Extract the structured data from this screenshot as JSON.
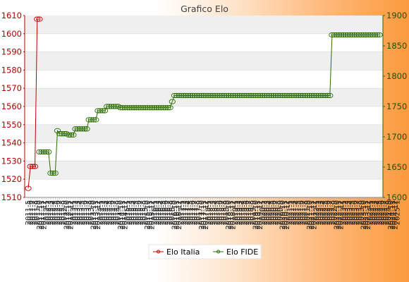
{
  "chart_data": {
    "type": "line",
    "title": "Grafico Elo",
    "left_axis": {
      "ylim": [
        1510,
        1610
      ],
      "ticks": [
        1510,
        1520,
        1530,
        1540,
        1550,
        1560,
        1570,
        1580,
        1590,
        1600,
        1610
      ],
      "color": "#c00000"
    },
    "right_axis": {
      "ylim": [
        1600,
        1900
      ],
      "ticks": [
        1600,
        1650,
        1700,
        1750,
        1800,
        1850,
        1900
      ],
      "color": "#2a6e00"
    },
    "grid": "horizontal bands",
    "legend_position": "bottom-center",
    "x_count": 157,
    "x_tick_labels": [
      "2011-5",
      "2011-6",
      "2011-7",
      "2011-8",
      "2011-9",
      "2011-10",
      "2011-11",
      "2011-12",
      "2012-1",
      "2012-2",
      "2012-3",
      "2012-4",
      "2012-5",
      "2012-6",
      "2012-7",
      "2012-8",
      "2012-9",
      "2012-10",
      "2012-11",
      "2012-12",
      "2013-1",
      "2013-2",
      "2013-3",
      "2013-4",
      "2013-5",
      "2013-6",
      "2013-7",
      "2013-8",
      "2013-9",
      "2013-10",
      "2013-11",
      "2013-12",
      "2014-1",
      "2014-2",
      "2014-3",
      "2014-4",
      "2014-5",
      "2014-6",
      "2014-7",
      "2014-8",
      "2014-9",
      "2014-10",
      "2014-11",
      "2014-12",
      "2015-1",
      "2015-2",
      "2015-3",
      "2015-4",
      "2015-5",
      "2015-6",
      "2015-7",
      "2015-8",
      "2015-9",
      "2015-10",
      "2015-11",
      "2015-12",
      "2016-1",
      "2016-2",
      "2016-3",
      "2016-4",
      "2016-5",
      "2016-6",
      "2016-7",
      "2016-8",
      "2016-9",
      "2016-10",
      "2016-11",
      "2016-12",
      "2017-1",
      "2017-2",
      "2017-3",
      "2017-4",
      "2017-5",
      "2017-6",
      "2017-7",
      "2017-8",
      "2017-9",
      "2017-10",
      "2017-11",
      "2017-12",
      "2018-1",
      "2018-2",
      "2018-3",
      "2018-4",
      "2018-5",
      "2018-6",
      "2018-7",
      "2018-8",
      "2018-9",
      "2018-10",
      "2018-11",
      "2018-12",
      "2019-1",
      "2019-2",
      "2019-3",
      "2019-4",
      "2019-5",
      "2019-6",
      "2019-7",
      "2019-8",
      "2019-9",
      "2019-10",
      "2019-11",
      "2019-12",
      "2020-1",
      "2020-2",
      "2020-3",
      "2020-4",
      "2020-5",
      "2020-6",
      "2020-7",
      "2020-8",
      "2020-9",
      "2020-10",
      "2020-11",
      "2020-12",
      "2021-1",
      "2021-2",
      "2021-3",
      "2021-4",
      "2021-5",
      "2021-6",
      "2021-7",
      "2021-8",
      "2021-9",
      "2021-10",
      "2021-11",
      "2021-12",
      "2022-1",
      "2022-2",
      "2022-3",
      "2022-4",
      "2022-5",
      "2022-6",
      "2022-7",
      "2022-8",
      "2022-9",
      "2022-10",
      "2022-11",
      "2022-12",
      "2023-1",
      "2023-2",
      "2023-3",
      "2023-4",
      "2023-5",
      "2023-6",
      "2023-7",
      "2023-8",
      "2023-9",
      "2023-10",
      "2023-11",
      "2023-12",
      "2024-1",
      "2024-2",
      "2024-3",
      "2024-4",
      "2024-5",
      "2024-6",
      "2024-7",
      "2024-8",
      "2024-9",
      "2024-10",
      "2024-11",
      "2024-12",
      "2025-1"
    ],
    "series": [
      {
        "name": "Elo Italia",
        "axis": "left",
        "color": "#c00000",
        "points": [
          [
            0,
            1515
          ],
          [
            1,
            1527
          ],
          [
            2,
            1527
          ],
          [
            3,
            1527
          ],
          [
            4,
            1608
          ],
          [
            5,
            1608
          ]
        ]
      },
      {
        "name": "Elo FIDE",
        "axis": "right",
        "color": "#2a6e00",
        "points": [
          [
            5,
            1675
          ],
          [
            6,
            1675
          ],
          [
            7,
            1675
          ],
          [
            8,
            1675
          ],
          [
            9,
            1675
          ],
          [
            10,
            1640
          ],
          [
            11,
            1640
          ],
          [
            12,
            1640
          ],
          [
            13,
            1710
          ],
          [
            14,
            1705
          ],
          [
            15,
            1705
          ],
          [
            16,
            1705
          ],
          [
            17,
            1705
          ],
          [
            18,
            1703
          ],
          [
            19,
            1703
          ],
          [
            20,
            1703
          ],
          [
            21,
            1713
          ],
          [
            22,
            1713
          ],
          [
            23,
            1713
          ],
          [
            24,
            1713
          ],
          [
            25,
            1713
          ],
          [
            26,
            1713
          ],
          [
            27,
            1728
          ],
          [
            28,
            1728
          ],
          [
            29,
            1728
          ],
          [
            30,
            1728
          ],
          [
            31,
            1743
          ],
          [
            32,
            1743
          ],
          [
            33,
            1743
          ],
          [
            34,
            1743
          ],
          [
            35,
            1750
          ],
          [
            36,
            1750
          ],
          [
            37,
            1750
          ],
          [
            38,
            1750
          ],
          [
            39,
            1750
          ],
          [
            40,
            1750
          ],
          [
            41,
            1748
          ],
          [
            42,
            1748
          ],
          [
            43,
            1748
          ],
          [
            44,
            1748
          ],
          [
            45,
            1748
          ],
          [
            46,
            1748
          ],
          [
            47,
            1748
          ],
          [
            48,
            1748
          ],
          [
            49,
            1748
          ],
          [
            50,
            1748
          ],
          [
            51,
            1748
          ],
          [
            52,
            1748
          ],
          [
            53,
            1748
          ],
          [
            54,
            1748
          ],
          [
            55,
            1748
          ],
          [
            56,
            1748
          ],
          [
            57,
            1748
          ],
          [
            58,
            1748
          ],
          [
            59,
            1748
          ],
          [
            60,
            1748
          ],
          [
            61,
            1748
          ],
          [
            62,
            1748
          ],
          [
            63,
            1748
          ],
          [
            64,
            1758
          ],
          [
            65,
            1768
          ],
          [
            66,
            1768
          ],
          [
            67,
            1768
          ],
          [
            68,
            1768
          ],
          [
            69,
            1768
          ],
          [
            70,
            1768
          ],
          [
            71,
            1768
          ],
          [
            72,
            1768
          ],
          [
            73,
            1768
          ],
          [
            74,
            1768
          ],
          [
            75,
            1768
          ],
          [
            76,
            1768
          ],
          [
            77,
            1768
          ],
          [
            78,
            1768
          ],
          [
            79,
            1768
          ],
          [
            80,
            1768
          ],
          [
            81,
            1768
          ],
          [
            82,
            1768
          ],
          [
            83,
            1768
          ],
          [
            84,
            1768
          ],
          [
            85,
            1768
          ],
          [
            86,
            1768
          ],
          [
            87,
            1768
          ],
          [
            88,
            1768
          ],
          [
            89,
            1768
          ],
          [
            90,
            1768
          ],
          [
            91,
            1768
          ],
          [
            92,
            1768
          ],
          [
            93,
            1768
          ],
          [
            94,
            1768
          ],
          [
            95,
            1768
          ],
          [
            96,
            1768
          ],
          [
            97,
            1768
          ],
          [
            98,
            1768
          ],
          [
            99,
            1768
          ],
          [
            100,
            1768
          ],
          [
            101,
            1768
          ],
          [
            102,
            1768
          ],
          [
            103,
            1768
          ],
          [
            104,
            1768
          ],
          [
            105,
            1768
          ],
          [
            106,
            1768
          ],
          [
            107,
            1768
          ],
          [
            108,
            1768
          ],
          [
            109,
            1768
          ],
          [
            110,
            1768
          ],
          [
            111,
            1768
          ],
          [
            112,
            1768
          ],
          [
            113,
            1768
          ],
          [
            114,
            1768
          ],
          [
            115,
            1768
          ],
          [
            116,
            1768
          ],
          [
            117,
            1768
          ],
          [
            118,
            1768
          ],
          [
            119,
            1768
          ],
          [
            120,
            1768
          ],
          [
            121,
            1768
          ],
          [
            122,
            1768
          ],
          [
            123,
            1768
          ],
          [
            124,
            1768
          ],
          [
            125,
            1768
          ],
          [
            126,
            1768
          ],
          [
            127,
            1768
          ],
          [
            128,
            1768
          ],
          [
            129,
            1768
          ],
          [
            130,
            1768
          ],
          [
            131,
            1768
          ],
          [
            132,
            1768
          ],
          [
            133,
            1768
          ],
          [
            134,
            1768
          ],
          [
            135,
            1868
          ],
          [
            136,
            1868
          ],
          [
            137,
            1868
          ],
          [
            138,
            1868
          ],
          [
            139,
            1868
          ],
          [
            140,
            1868
          ],
          [
            141,
            1868
          ],
          [
            142,
            1868
          ],
          [
            143,
            1868
          ],
          [
            144,
            1868
          ],
          [
            145,
            1868
          ],
          [
            146,
            1868
          ],
          [
            147,
            1868
          ],
          [
            148,
            1868
          ],
          [
            149,
            1868
          ],
          [
            150,
            1868
          ],
          [
            151,
            1868
          ],
          [
            152,
            1868
          ],
          [
            153,
            1868
          ],
          [
            154,
            1868
          ],
          [
            155,
            1868
          ],
          [
            156,
            1868
          ]
        ]
      }
    ]
  }
}
